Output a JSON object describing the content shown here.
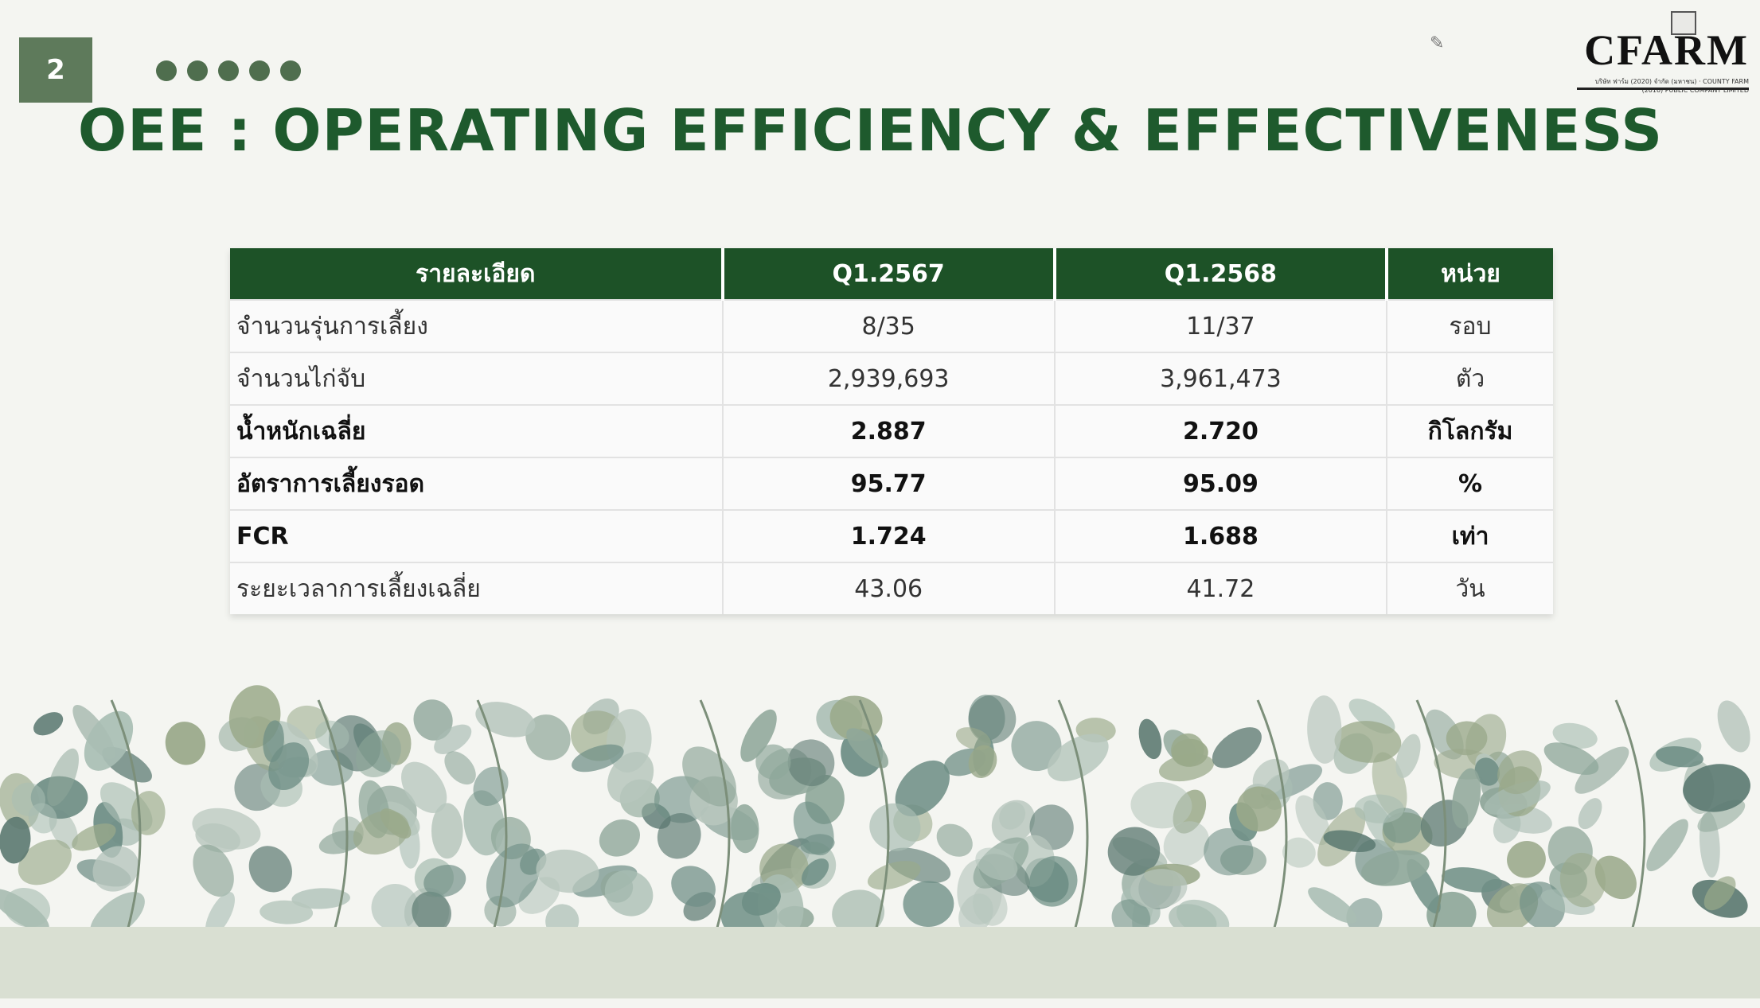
{
  "page_number": "2",
  "title": "OEE : OPERATING EFFICIENCY & EFFECTIVENESS",
  "logo": {
    "name": "CFARM",
    "subtitle": "บริษัท ฟาร์ม (2020) จำกัด (มหาชน) · COUNTY FARM (2010) PUBLIC COMPANY LIMITED"
  },
  "table": {
    "headers": [
      "รายละเอียด",
      "Q1.2567",
      "Q1.2568",
      "หน่วย"
    ],
    "rows": [
      {
        "label": "จำนวนรุ่นการเลี้ยง",
        "q1_2567": "8/35",
        "q1_2568": "11/37",
        "unit": "รอบ",
        "bold": false
      },
      {
        "label": "จำนวนไก่จับ",
        "q1_2567": "2,939,693",
        "q1_2568": "3,961,473",
        "unit": "ตัว",
        "bold": false
      },
      {
        "label": "น้ำหนักเฉลี่ย",
        "q1_2567": "2.887",
        "q1_2568": "2.720",
        "unit": "กิโลกรัม",
        "bold": true
      },
      {
        "label": "อัตราการเลี้ยงรอด",
        "q1_2567": "95.77",
        "q1_2568": "95.09",
        "unit": "%",
        "bold": true
      },
      {
        "label": "FCR",
        "q1_2567": "1.724",
        "q1_2568": "1.688",
        "unit": "เท่า",
        "bold": true
      },
      {
        "label": "ระยะเวลาการเลี้ยงเฉลี่ย",
        "q1_2567": "43.06",
        "q1_2568": "41.72",
        "unit": "วัน",
        "bold": false
      }
    ]
  },
  "colors": {
    "header": "#1d5227",
    "title": "#1e5a2d",
    "page_badge": "#5e7a5b",
    "leaf": "#8fa79a"
  }
}
